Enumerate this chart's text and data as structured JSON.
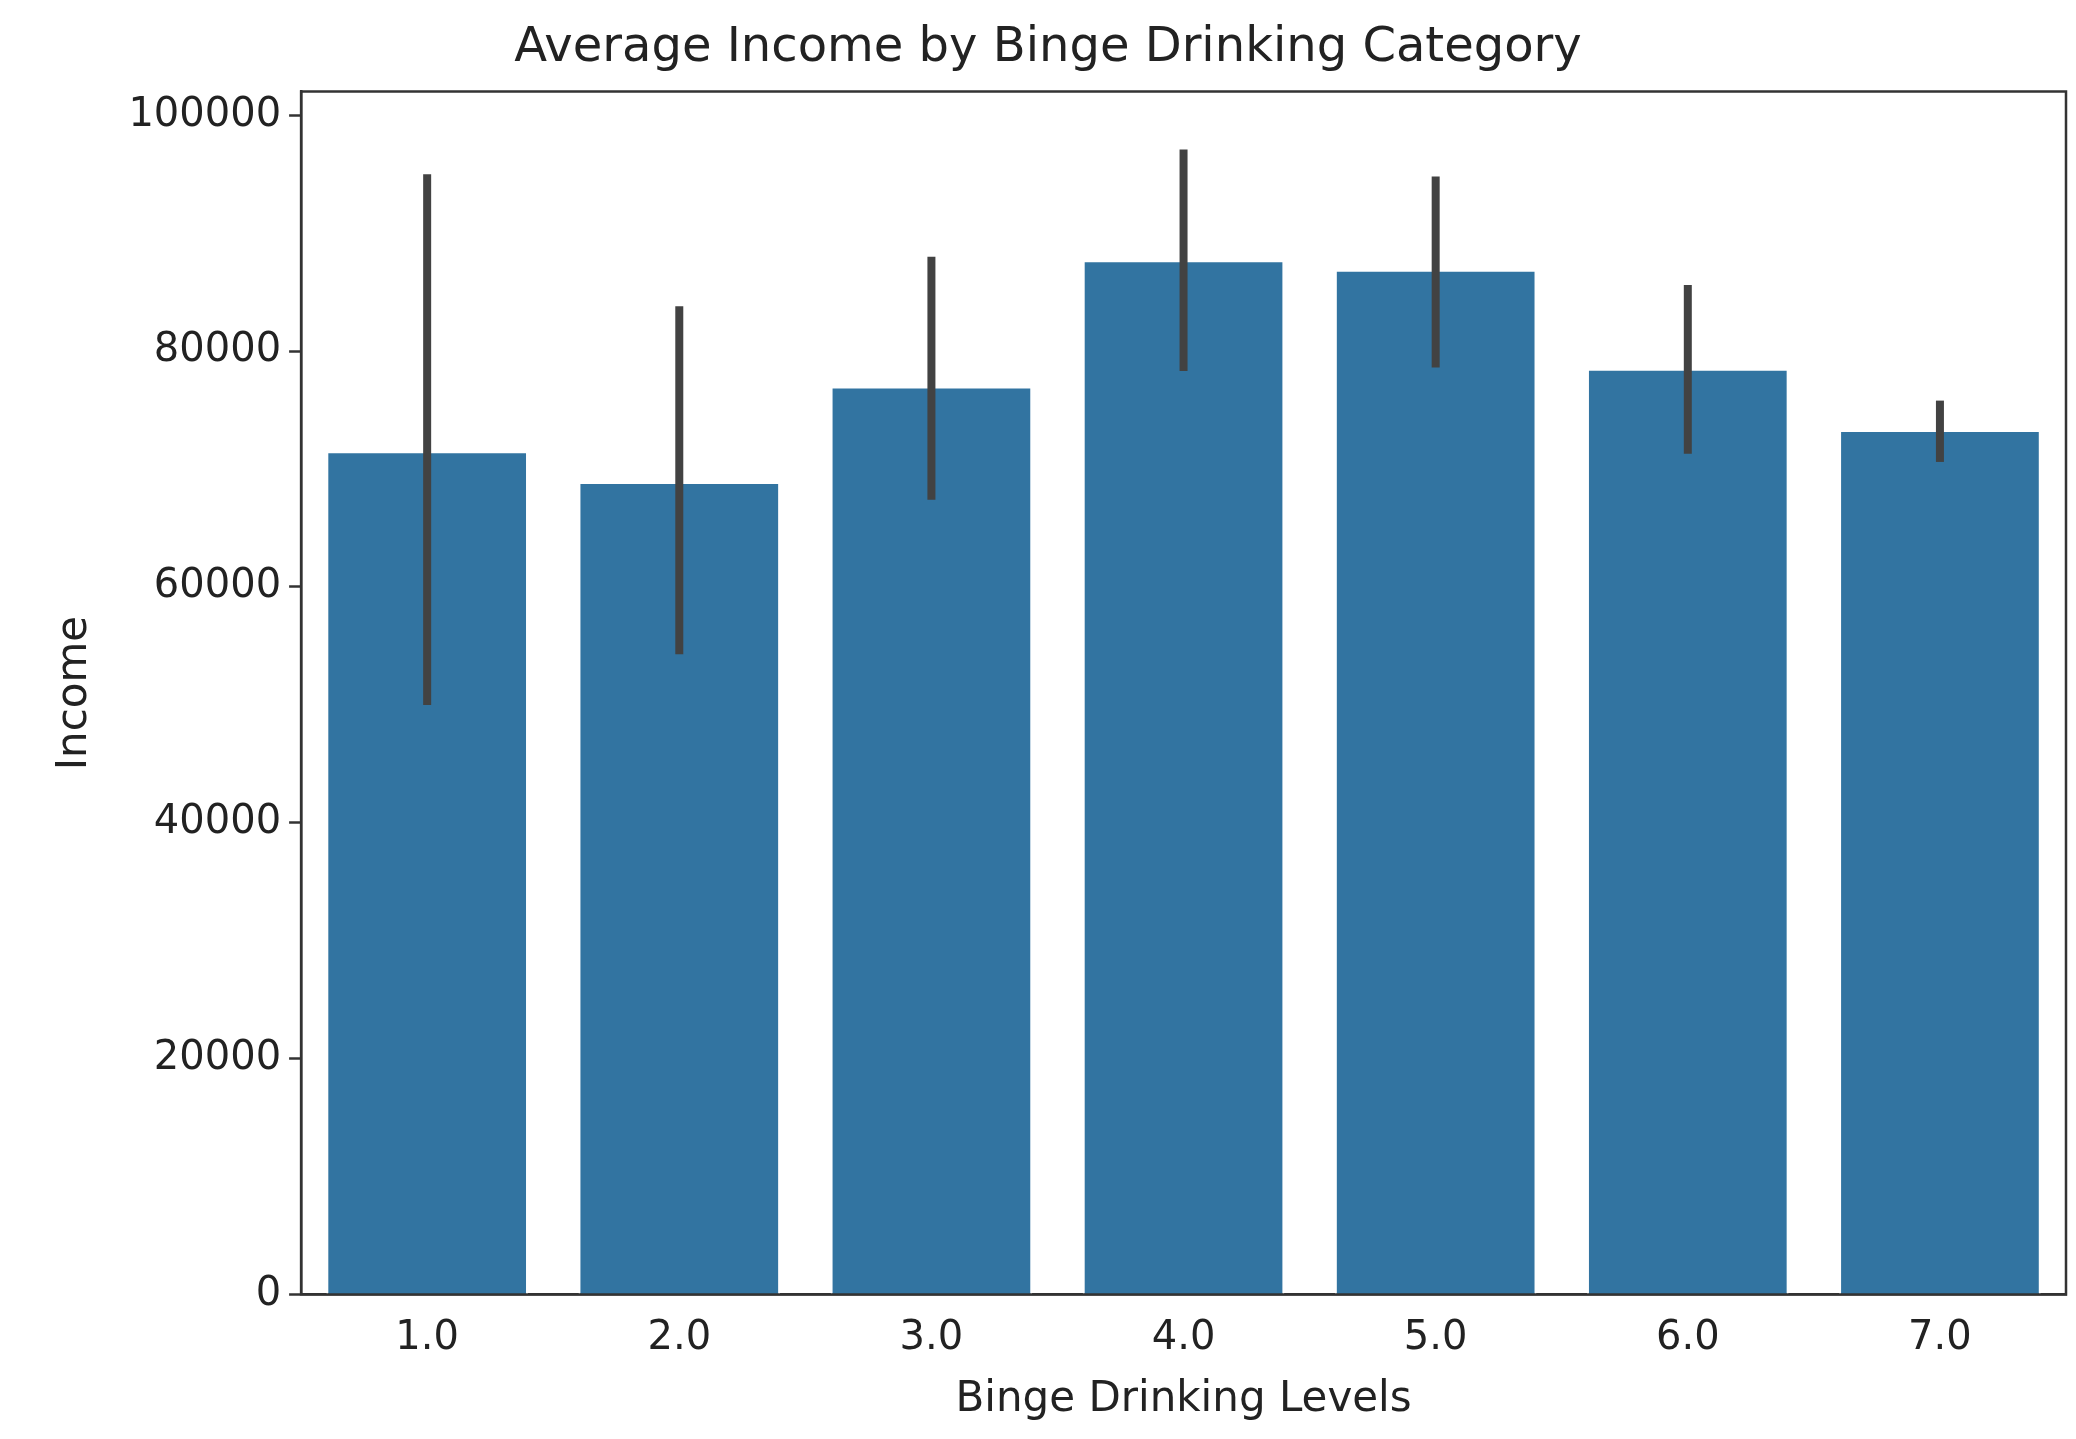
{
  "chart_data": {
    "type": "bar",
    "title": "Average Income by Binge Drinking Category",
    "xlabel": "Binge Drinking Levels",
    "ylabel": "Income",
    "categories": [
      "1.0",
      "2.0",
      "3.0",
      "4.0",
      "5.0",
      "6.0",
      "7.0"
    ],
    "values": [
      71500,
      68900,
      77000,
      87700,
      86900,
      78500,
      73300
    ],
    "errors": [
      [
        50000,
        95000
      ],
      [
        54300,
        83800
      ],
      [
        67400,
        88000
      ],
      [
        78300,
        97100
      ],
      [
        78600,
        94800
      ],
      [
        71300,
        85600
      ],
      [
        70600,
        75800
      ]
    ],
    "color": "#3274a1",
    "ylim": [
      0,
      102000
    ],
    "yticks": [
      0,
      20000,
      40000,
      60000,
      80000,
      100000
    ],
    "grid": false,
    "legend": false
  }
}
